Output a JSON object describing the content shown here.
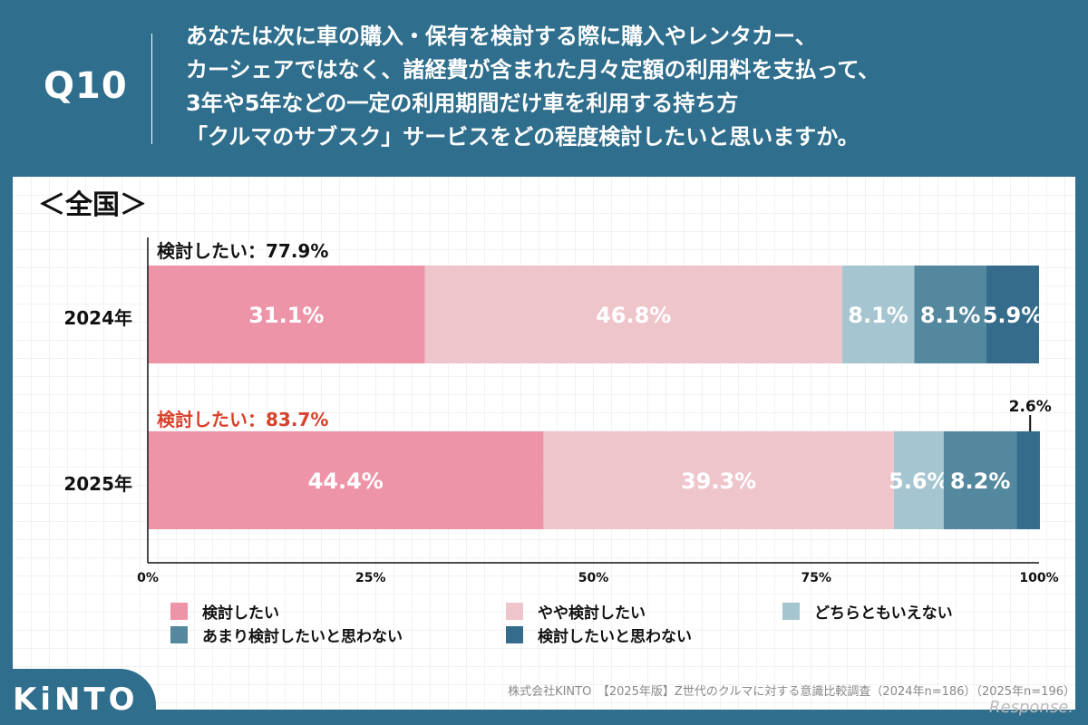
{
  "header": {
    "question_no": "Q10",
    "question_lines": [
      "あなたは次に車の購入・保有を検討する際に購入やレンタカー、",
      "カーシェアではなく、諸経費が含まれた月々定額の利用料を支払って、",
      "3年や5年などの一定の利用期間だけ車を利用する持ち方",
      "「クルマのサブスク」サービスをどの程度検討したいと思いますか。"
    ]
  },
  "region_label": "＜全国＞",
  "colors": {
    "background": "#2f6e8c",
    "highlight_red": "#d9402b"
  },
  "chart_data": {
    "type": "bar",
    "orientation": "horizontal-stacked-100",
    "categories": [
      "2024年",
      "2025年"
    ],
    "series": [
      {
        "name": "検討したい",
        "color": "#ee94a8",
        "values": [
          31.1,
          44.4
        ],
        "labels": [
          "31.1%",
          "44.4%"
        ]
      },
      {
        "name": "やや検討したい",
        "color": "#efc5cc",
        "values": [
          46.8,
          39.3
        ],
        "labels": [
          "46.8%",
          "39.3%"
        ]
      },
      {
        "name": "どちらともいえない",
        "color": "#a5c5d0",
        "values": [
          8.1,
          5.6
        ],
        "labels": [
          "8.1%",
          "5.6%"
        ]
      },
      {
        "name": "あまり検討したいと思わない",
        "color": "#53889f",
        "values": [
          8.1,
          8.2
        ],
        "labels": [
          "8.1%",
          "8.2%"
        ]
      },
      {
        "name": "検討したいと思わない",
        "color": "#356c8b",
        "values": [
          5.9,
          2.6
        ],
        "labels": [
          "5.9%",
          "2.6%"
        ]
      }
    ],
    "summaries": [
      {
        "text": "検討したい：77.9%",
        "color": "#111111"
      },
      {
        "text": "検討したい：83.7%",
        "color": "#d9402b"
      }
    ],
    "xticks": [
      "0%",
      "25%",
      "50%",
      "75%",
      "100%"
    ],
    "xlim": [
      0,
      100
    ],
    "legend_position": "bottom",
    "title": "",
    "xlabel": "",
    "ylabel": ""
  },
  "footer": {
    "brand": "KiNTO",
    "source": "株式会社KINTO　【2025年版】Z世代のクルマに対する意識比較調査（2024年n=186）（2025年n=196）",
    "watermark": "Response."
  }
}
